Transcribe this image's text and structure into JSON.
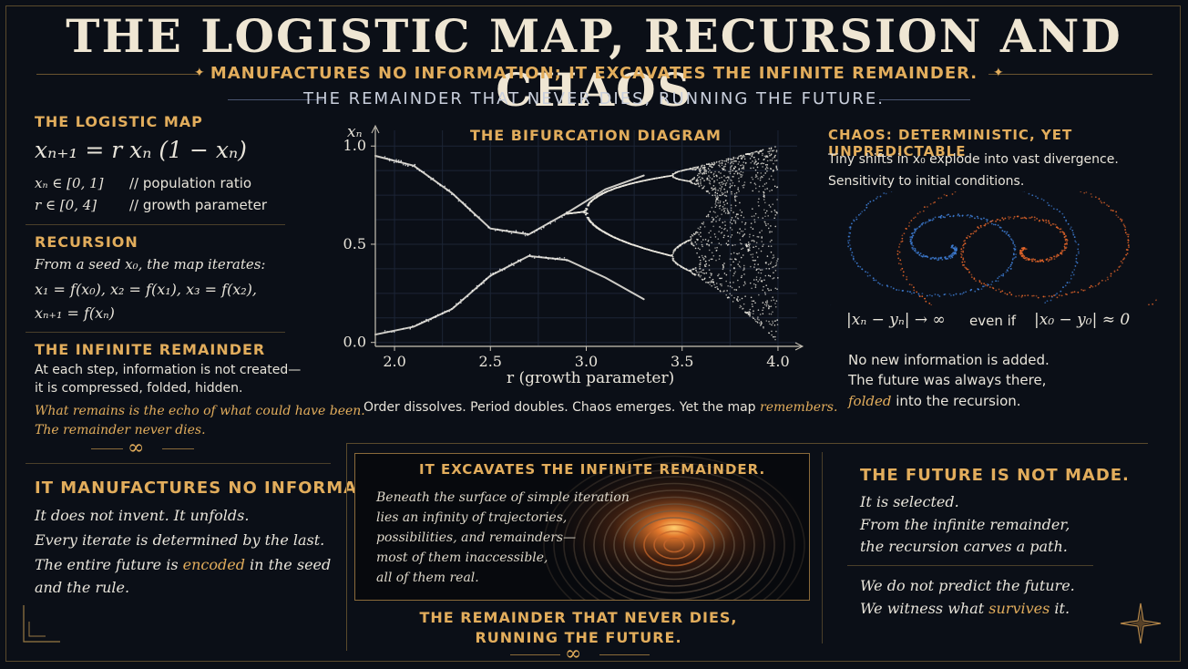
{
  "title": "THE LOGISTIC MAP, RECURSION AND CHAOS",
  "subtitle": "MANUFACTURES NO INFORMATION; IT EXCAVATES THE INFINITE REMAINDER.",
  "subtitle2": "THE REMAINDER THAT NEVER DIES, RUNNING THE FUTURE.",
  "logistic_map": {
    "heading": "THE LOGISTIC MAP",
    "equation": "xₙ₊₁ = r xₙ (1 − xₙ)",
    "def1_var": "xₙ ∈ [0, 1]",
    "def1_note": "//  population ratio",
    "def2_var": "r ∈ [0, 4]",
    "def2_note": "//  growth parameter"
  },
  "recursion": {
    "heading": "RECURSION",
    "intro": "From a seed x₀, the map iterates:",
    "line1": "x₁ = f(x₀),   x₂ = f(x₁),   x₃ = f(x₂),",
    "line2": "xₙ₊₁ = f(xₙ)"
  },
  "infinite_remainder": {
    "heading": "THE INFINITE REMAINDER",
    "line1": "At each step, information is not created—",
    "line2": "it is compressed, folded, hidden.",
    "quote1": "What remains is the echo of what could have been.",
    "quote2": "The remainder never dies.",
    "symbol": "∞"
  },
  "manufactures": {
    "heading": "IT MANUFACTURES NO INFORMATION.",
    "line1": "It does not invent. It unfolds.",
    "line2": "Every iterate is determined by the last.",
    "line3a": "The entire future is ",
    "line3b": "encoded",
    "line3c": " in the seed",
    "line4": "and the rule."
  },
  "chart_data": {
    "type": "scatter",
    "title": "THE BIFURCATION DIAGRAM",
    "ylabel": "xₙ",
    "xlabel": "r (growth parameter)",
    "xlim": [
      1.9,
      4.1
    ],
    "ylim": [
      -0.02,
      1.08
    ],
    "xticks": [
      "2.0",
      "2.5",
      "3.0",
      "3.5",
      "4.0"
    ],
    "yticks": [
      "1.0",
      "0.5",
      "0.0"
    ],
    "grid": true,
    "branches": [
      {
        "r": [
          1.9,
          2.1,
          2.3,
          2.5,
          2.7,
          2.9,
          3.1,
          3.3,
          3.5,
          4.0
        ],
        "x": [
          0.95,
          0.9,
          0.76,
          0.58,
          0.55,
          0.66,
          0.78,
          0.85,
          0.88,
          0.93
        ]
      },
      {
        "r": [
          1.9,
          2.1,
          2.3,
          2.5,
          2.7,
          2.9,
          3.1,
          3.3,
          3.5,
          4.0
        ],
        "x": [
          0.04,
          0.08,
          0.17,
          0.34,
          0.44,
          0.42,
          0.33,
          0.22,
          0.14,
          0.06
        ]
      }
    ],
    "caption_a": "Order dissolves. Period doubles. Chaos emerges. Yet the map ",
    "caption_b": "remembers."
  },
  "chaos": {
    "heading": "CHAOS: DETERMINISTIC, YET UNPREDICTABLE",
    "line1": "Tiny shifts in x₀ explode into vast divergence.",
    "line2": "Sensitivity to initial conditions.",
    "formula_a": "|xₙ − yₙ| → ∞",
    "formula_b": "even if",
    "formula_c": "|x₀ − y₀| ≈ 0",
    "line3": "No new information is added.",
    "line4": "The future was always there,",
    "line5a": "folded",
    "line5b": " into the recursion."
  },
  "excavates": {
    "heading": "IT EXCAVATES THE INFINITE REMAINDER.",
    "lines": [
      "Beneath the surface of simple iteration",
      "lies an infinity of trajectories,",
      "possibilities, and remainders—",
      "most of them inaccessible,",
      "all of them real."
    ],
    "footer1": "THE REMAINDER THAT NEVER DIES,",
    "footer2": "RUNNING THE FUTURE.",
    "symbol": "∞"
  },
  "future": {
    "heading": "THE FUTURE IS NOT MADE.",
    "line1": "It is selected.",
    "line2": "From the infinite remainder,",
    "line3": "the recursion carves a path.",
    "line4": "We do not predict the future.",
    "line5a": "We witness what ",
    "line5b": "survives",
    "line5c": " it."
  },
  "colors": {
    "gold": "#e2ad5c",
    "blue_spiral": "#3f7fd8",
    "orange_spiral": "#e8672a",
    "background": "#0b0f17"
  }
}
